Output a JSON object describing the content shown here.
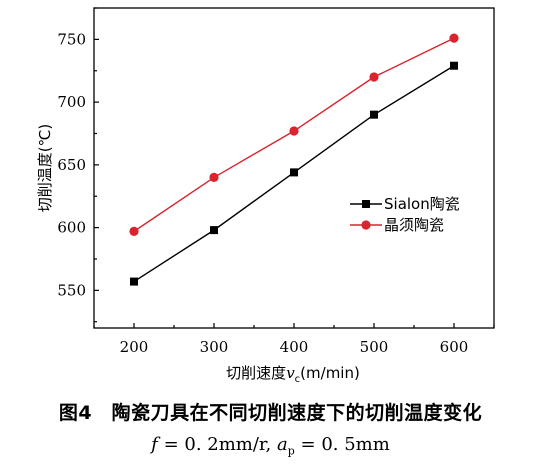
{
  "chart_data": {
    "type": "line",
    "x": [
      200,
      300,
      400,
      500,
      600
    ],
    "xlim": [
      150,
      650
    ],
    "ylim": [
      520,
      775
    ],
    "x_ticks": [
      "200",
      "300",
      "400",
      "500",
      "600"
    ],
    "y_ticks": [
      "550",
      "600",
      "650",
      "700",
      "750"
    ],
    "xlabel_prefix": "切削速度",
    "xlabel_var": "v",
    "xlabel_sub": "c",
    "xlabel_unit": "(m/min)",
    "ylabel": "切削温度(℃)",
    "legend_position": "right",
    "series": [
      {
        "name": "Sialon陶瓷",
        "values": [
          557,
          598,
          644,
          690,
          729
        ],
        "color": "#000000",
        "marker": "square"
      },
      {
        "name": "晶须陶瓷",
        "values": [
          597,
          640,
          677,
          720,
          751
        ],
        "color": "#d9232d",
        "marker": "circle"
      }
    ]
  },
  "caption": {
    "title": "图4　陶瓷刀具在不同切削速度下的切削温度变化",
    "f_symbol": "f",
    "f_value": "= 0. 2mm/r,",
    "ap_symbol": "a",
    "ap_sub": "p",
    "ap_value": "= 0. 5mm"
  }
}
